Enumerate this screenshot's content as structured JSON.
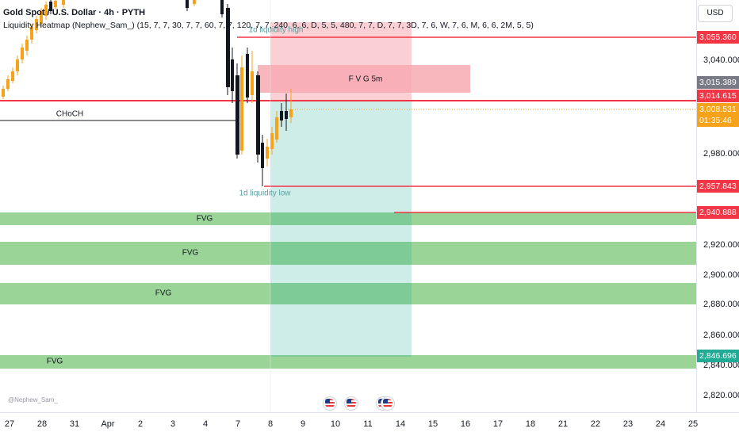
{
  "legend": {
    "symbol": "Gold Spot / U.S. Dollar · 4h · PYTH",
    "indicator": "Liquidity Heatmap (Nephew_Sam_) (15, 7, 7, 30, 7, 7, 60, 7, 7, 120, 7, 7, 240, 6, 6, D, 5, 5, 480, 7, 7, D, 7, 7, 3D, 7, 6, W, 7, 6, M, 6, 6, 2M, 5, 5)"
  },
  "currency_button": "USD",
  "price_ticks": [
    "3,040.000",
    "3,000.000",
    "2,980.000",
    "2,920.000",
    "2,900.000",
    "2,880.000",
    "2,860.000",
    "2,840.000",
    "2,820.000"
  ],
  "price_tags": {
    "level_3055": "3,055.360",
    "fvg_top": "3,015.389",
    "level_3014": "3,014.615",
    "current_price": "3,008.531",
    "countdown": "01:35:46",
    "level_2957": "2,957.843",
    "level_2940": "2,940.888",
    "target": "2,846.696"
  },
  "time_ticks": [
    "27",
    "28",
    "31",
    "Apr",
    "2",
    "3",
    "4",
    "7",
    "8",
    "9",
    "10",
    "11",
    "14",
    "15",
    "16",
    "17",
    "18",
    "21",
    "22",
    "23",
    "24",
    "25"
  ],
  "labels": {
    "liq_high": "1d liquidity high",
    "liq_low": "1d liquidity low",
    "choch": "CHoCH",
    "fvg_5m": "F V G 5m",
    "fvg": "FVG"
  },
  "watermark": "@Nephew_Sam_",
  "colors": {
    "up": "#f7a21b",
    "down": "#131722",
    "level_red": "#f23645",
    "fvg_green": "#8fcf8b",
    "target_teal": "#22ab94",
    "stop_pink": "#f7a9b1",
    "grey_tag": "#787b86"
  }
}
